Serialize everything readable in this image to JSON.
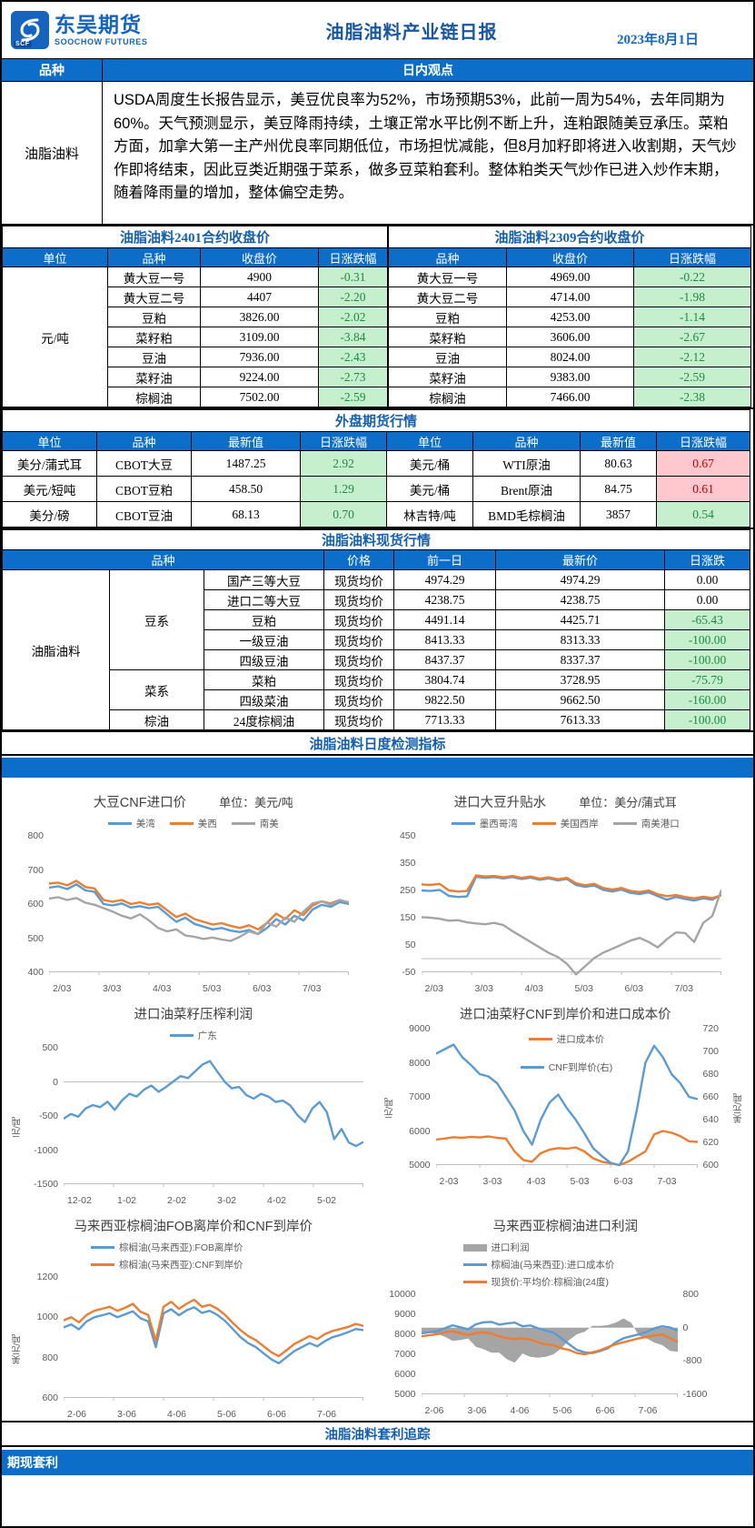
{
  "colors": {
    "accent_blue": "#0c6ec8",
    "title_blue": "#1460ae",
    "green_bg": "#c6efce",
    "green_text": "#1f8b3f",
    "red_bg": "#ffc7ce",
    "red_text": "#c00000",
    "line_blue": "#5B9BD5",
    "line_orange": "#ED7D31",
    "line_gray": "#A5A5A5"
  },
  "header": {
    "logo_cn": "东吴期货",
    "logo_en": "SOOCHOW FUTURES",
    "logo_badge": "SCF",
    "title": "油脂油料产业链日报",
    "date": "2023年8月1日"
  },
  "observation": {
    "col_variety": "品种",
    "col_view": "日内观点",
    "variety": "油脂油料",
    "text": "USDA周度生长报告显示，美豆优良率为52%，市场预期53%，此前一周为54%，去年同期为60%。天气预测显示，美豆降雨持续，土壤正常水平比例不断上升，连粕跟随美豆承压。菜粕方面，加拿大第一主产州优良率同期低位，市场担忧减能，但8月加籽即将进入收割期，天气炒作即将结束，因此豆类近期强于菜系，做多豆菜粕套利。整体粕类天气炒作已进入炒作末期，随着降雨量的增加，整体偏空走势。"
  },
  "contracts": {
    "left": {
      "title": "油脂油料2401合约收盘价",
      "headers": [
        "单位",
        "品种",
        "收盘价",
        "日涨跌幅"
      ],
      "unit": "元/吨",
      "rows": [
        [
          "黄大豆一号",
          "4900",
          "-0.31"
        ],
        [
          "黄大豆二号",
          "4407",
          "-2.20"
        ],
        [
          "豆粕",
          "3826.00",
          "-2.02"
        ],
        [
          "菜籽粕",
          "3109.00",
          "-3.84"
        ],
        [
          "豆油",
          "7936.00",
          "-2.43"
        ],
        [
          "菜籽油",
          "9224.00",
          "-2.73"
        ],
        [
          "棕榈油",
          "7502.00",
          "-2.59"
        ]
      ]
    },
    "right": {
      "title": "油脂油料2309合约收盘价",
      "headers": [
        "品种",
        "收盘价",
        "日涨跌幅"
      ],
      "rows": [
        [
          "黄大豆一号",
          "4969.00",
          "-0.22"
        ],
        [
          "黄大豆二号",
          "4714.00",
          "-1.98"
        ],
        [
          "豆粕",
          "4253.00",
          "-1.14"
        ],
        [
          "菜籽粕",
          "3606.00",
          "-2.67"
        ],
        [
          "豆油",
          "8024.00",
          "-2.12"
        ],
        [
          "菜籽油",
          "9383.00",
          "-2.59"
        ],
        [
          "棕榈油",
          "7466.00",
          "-2.38"
        ]
      ]
    }
  },
  "external": {
    "title": "外盘期货行情",
    "headers": [
      "单位",
      "品种",
      "最新值",
      "日涨跌幅",
      "单位",
      "品种",
      "最新值",
      "日涨跌幅"
    ],
    "rows": [
      {
        "cells": [
          "美分/蒲式耳",
          "CBOT大豆",
          "1487.25",
          "2.92",
          "美元/桶",
          "WTI原油",
          "80.63",
          "0.67"
        ],
        "tones": {
          "3": "green",
          "7": "red"
        }
      },
      {
        "cells": [
          "美元/短吨",
          "CBOT豆粕",
          "458.50",
          "1.29",
          "美元/桶",
          "Brent原油",
          "84.75",
          "0.61"
        ],
        "tones": {
          "3": "green",
          "7": "red"
        }
      },
      {
        "cells": [
          "美分/磅",
          "CBOT豆油",
          "68.13",
          "0.70",
          "林吉特/吨",
          "BMD毛棕榈油",
          "3857",
          "0.54"
        ],
        "tones": {
          "3": "green",
          "7": "green"
        }
      }
    ]
  },
  "spot": {
    "title": "油脂油料现货行情",
    "headers": [
      "品种",
      "价格",
      "前一日",
      "最新价",
      "日涨跌"
    ],
    "group": "油脂油料",
    "sections": [
      {
        "name": "豆系",
        "rows": [
          [
            "国产三等大豆",
            "现货均价",
            "4974.29",
            "4974.29",
            "0.00"
          ],
          [
            "进口二等大豆",
            "现货均价",
            "4238.75",
            "4238.75",
            "0.00"
          ],
          [
            "豆粕",
            "现货均价",
            "4491.14",
            "4425.71",
            "-65.43"
          ],
          [
            "一级豆油",
            "现货均价",
            "8413.33",
            "8313.33",
            "-100.00"
          ],
          [
            "四级豆油",
            "现货均价",
            "8437.37",
            "8337.37",
            "-100.00"
          ]
        ]
      },
      {
        "name": "菜系",
        "rows": [
          [
            "菜粕",
            "现货均价",
            "3804.74",
            "3728.95",
            "-75.79"
          ],
          [
            "四级菜油",
            "现货均价",
            "9822.50",
            "9662.50",
            "-160.00"
          ]
        ]
      },
      {
        "name": "棕油",
        "rows": [
          [
            "24度棕榈油",
            "现货均价",
            "7713.33",
            "7613.33",
            "-100.00"
          ]
        ]
      }
    ]
  },
  "indicators_title": "油脂油料日度检测指标",
  "footer": {
    "arb_title": "油脂油料套利追踪",
    "band": "期现套利"
  },
  "chart_data": [
    {
      "id": "soybean-cnf-import-price",
      "type": "line",
      "title": "大豆CNF进口价",
      "unit_label": "单位：美元/吨",
      "legend_layout": "row",
      "grid": false,
      "legend_position": "top",
      "x_ticks": [
        "2/03",
        "3/03",
        "4/03",
        "5/03",
        "6/03",
        "7/03"
      ],
      "ylim": [
        400,
        800
      ],
      "yticks": [
        800,
        700,
        600,
        500,
        400
      ],
      "series": [
        {
          "name": "美湾",
          "color": "#5B9BD5",
          "values": [
            648,
            652,
            644,
            658,
            640,
            636,
            600,
            596,
            602,
            590,
            594,
            588,
            592,
            570,
            548,
            560,
            542,
            534,
            526,
            530,
            522,
            518,
            524,
            512,
            530,
            556,
            540,
            566,
            552,
            584,
            598,
            592,
            606,
            600
          ]
        },
        {
          "name": "美西",
          "color": "#ED7D31",
          "values": [
            660,
            663,
            655,
            668,
            650,
            646,
            612,
            607,
            612,
            600,
            605,
            598,
            602,
            582,
            562,
            572,
            556,
            548,
            540,
            544,
            536,
            530,
            538,
            526,
            545,
            572,
            556,
            582,
            568,
            596,
            608,
            602,
            612,
            605
          ]
        },
        {
          "name": "南美",
          "color": "#A5A5A5",
          "values": [
            616,
            620,
            612,
            618,
            604,
            598,
            588,
            578,
            566,
            558,
            570,
            552,
            530,
            520,
            526,
            508,
            504,
            498,
            502,
            496,
            492,
            504,
            520,
            512,
            546,
            534,
            560,
            548,
            578,
            602,
            608,
            598,
            612,
            604
          ]
        }
      ]
    },
    {
      "id": "imported-soybean-basis",
      "type": "line",
      "title": "进口大豆升贴水",
      "unit_label": "单位：美分/蒲式耳",
      "legend_layout": "row",
      "grid": false,
      "legend_position": "top",
      "x_ticks": [
        "2/03",
        "3/03",
        "4/03",
        "5/03",
        "6/03",
        "7/03"
      ],
      "ylim": [
        -50,
        450
      ],
      "yticks": [
        450,
        350,
        250,
        150,
        50,
        -50
      ],
      "series": [
        {
          "name": "墨西哥湾",
          "color": "#5B9BD5",
          "values": [
            250,
            248,
            252,
            230,
            226,
            228,
            300,
            296,
            299,
            294,
            299,
            292,
            297,
            289,
            294,
            287,
            292,
            270,
            263,
            268,
            252,
            246,
            253,
            241,
            237,
            243,
            229,
            216,
            226,
            219,
            213,
            221,
            216,
            235
          ]
        },
        {
          "name": "美国西岸",
          "color": "#ED7D31",
          "values": [
            272,
            270,
            274,
            250,
            246,
            248,
            305,
            301,
            303,
            298,
            303,
            296,
            301,
            293,
            298,
            291,
            296,
            276,
            269,
            274,
            259,
            253,
            259,
            248,
            244,
            250,
            236,
            229,
            233,
            226,
            221,
            227,
            222,
            232
          ]
        },
        {
          "name": "南美港口",
          "color": "#A5A5A5",
          "values": [
            152,
            150,
            146,
            139,
            141,
            133,
            129,
            126,
            131,
            123,
            101,
            81,
            61,
            41,
            21,
            6,
            -19,
            -58,
            -28,
            2,
            22,
            36,
            51,
            66,
            76,
            61,
            41,
            71,
            96,
            94,
            61,
            131,
            156,
            252
          ]
        }
      ]
    },
    {
      "id": "imported-rapeseed-crush-margin",
      "type": "line",
      "title": "进口油菜籽压榨利润",
      "legend_layout": "row",
      "grid": false,
      "legend_position": "top",
      "ylabel_left": "元/吨",
      "x_ticks": [
        "12-02",
        "1-02",
        "2-02",
        "3-02",
        "4-02",
        "5-02"
      ],
      "ylim": [
        -1500,
        500
      ],
      "yticks": [
        500,
        0,
        -500,
        -1000,
        -1500
      ],
      "series": [
        {
          "name": "广东",
          "color": "#5B9BD5",
          "values": [
            -540,
            -470,
            -510,
            -390,
            -340,
            -370,
            -290,
            -410,
            -270,
            -175,
            -215,
            -115,
            -55,
            -145,
            -75,
            5,
            85,
            55,
            155,
            255,
            305,
            155,
            5,
            -95,
            -75,
            -195,
            -245,
            -175,
            -215,
            -295,
            -275,
            -345,
            -490,
            -590,
            -390,
            -295,
            -445,
            -840,
            -690,
            -890,
            -940,
            -880
          ]
        }
      ]
    },
    {
      "id": "rapeseed-cnf-and-import-cost",
      "type": "line",
      "title": "进口油菜籽CNF到岸价和进口成本价",
      "legend_layout": "row",
      "legend_overlay": true,
      "grid": false,
      "legend_position": "inside-top",
      "ylabel_left": "元/吨",
      "ylabel_right": "美元/吨",
      "x_ticks": [
        "2-03",
        "3-03",
        "4-03",
        "5-03",
        "6-03",
        "7-03"
      ],
      "ylim": [
        5000,
        9000
      ],
      "yticks": [
        9000,
        8000,
        7000,
        6000,
        5000
      ],
      "ylim_right": [
        600,
        720
      ],
      "yticks_right": [
        720,
        700,
        680,
        660,
        640,
        620,
        600
      ],
      "series": [
        {
          "name": "进口成本价",
          "color": "#ED7D31",
          "values": [
            5750,
            5780,
            5820,
            5800,
            5830,
            5810,
            5840,
            5800,
            5780,
            5400,
            5150,
            5100,
            5350,
            5450,
            5500,
            5480,
            5520,
            5400,
            5200,
            5100,
            5050,
            5000,
            5100,
            5250,
            5400,
            5900,
            6000,
            5950,
            5850,
            5700,
            5680
          ]
        },
        {
          "name": "CNF到岸价(右)",
          "color": "#5B9BD5",
          "axis": "right",
          "values": [
            698,
            702,
            706,
            695,
            688,
            680,
            678,
            672,
            660,
            648,
            630,
            618,
            640,
            655,
            662,
            650,
            640,
            628,
            615,
            608,
            602,
            600,
            612,
            648,
            690,
            705,
            695,
            680,
            672,
            660,
            658
          ]
        }
      ]
    },
    {
      "id": "malaysia-palm-fob-cnf",
      "type": "line",
      "title": "马来西亚棕榈油FOB离岸价和CNF到岸价",
      "legend_layout": "column",
      "grid": false,
      "legend_position": "top",
      "ylabel_left": "美元/吨",
      "x_ticks": [
        "2-06",
        "3-06",
        "4-06",
        "5-06",
        "6-06",
        "7-06"
      ],
      "ylim": [
        600,
        1200
      ],
      "yticks": [
        1200,
        1000,
        800,
        600
      ],
      "series": [
        {
          "name": "棕榈油(马来西亚):FOB离岸价",
          "color": "#5B9BD5",
          "values": [
            950,
            965,
            940,
            980,
            1000,
            1010,
            1020,
            1000,
            1015,
            1030,
            995,
            980,
            852,
            1020,
            1040,
            1010,
            1035,
            1050,
            1022,
            1032,
            1012,
            982,
            942,
            902,
            872,
            852,
            822,
            792,
            772,
            802,
            832,
            852,
            872,
            856,
            882,
            902,
            912,
            926,
            942,
            936
          ]
        },
        {
          "name": "棕榈油(马来西亚):CNF到岸价",
          "color": "#ED7D31",
          "values": [
            985,
            1000,
            975,
            1012,
            1032,
            1042,
            1052,
            1032,
            1047,
            1067,
            1027,
            1012,
            882,
            1052,
            1077,
            1042,
            1067,
            1087,
            1052,
            1062,
            1042,
            1012,
            972,
            937,
            907,
            887,
            857,
            827,
            807,
            837,
            867,
            887,
            907,
            892,
            917,
            932,
            942,
            952,
            967,
            957
          ]
        }
      ]
    },
    {
      "id": "malaysia-palm-import-profit",
      "type": "line",
      "title": "马来西亚棕榈油进口利润",
      "legend_layout": "column",
      "grid": false,
      "legend_position": "top",
      "x_ticks": [
        "2-06",
        "3-06",
        "4-06",
        "5-06",
        "6-06",
        "7-06"
      ],
      "ylim": [
        5000,
        10000
      ],
      "yticks": [
        10000,
        9000,
        8000,
        7000,
        6000,
        5000
      ],
      "ylim_right": [
        -1600,
        800
      ],
      "yticks_right": [
        800,
        0,
        -800,
        -1600
      ],
      "series": [
        {
          "name": "进口利润",
          "color": "#A5A5A5",
          "type": "area",
          "axis": "right",
          "values": [
            -120,
            -120,
            -150,
            -220,
            -320,
            -300,
            -260,
            -460,
            -520,
            -600,
            -600,
            -760,
            -840,
            -620,
            -700,
            -720,
            -700,
            -640,
            -500,
            -300,
            -160,
            -100,
            40,
            40,
            60,
            120,
            220,
            120,
            -200,
            -260,
            -360,
            -420,
            -560,
            -580
          ]
        },
        {
          "name": "棕榈油(马来西亚):进口成本价",
          "color": "#5B9BD5",
          "values": [
            8050,
            8100,
            8150,
            8300,
            8450,
            8350,
            8250,
            8500,
            8600,
            8620,
            8480,
            8540,
            8580,
            8400,
            8440,
            8300,
            8180,
            8080,
            7800,
            7500,
            7220,
            7100,
            7060,
            7160,
            7300,
            7600,
            7800,
            7900,
            8000,
            8120,
            8300,
            8400,
            8340,
            8180
          ]
        },
        {
          "name": "现货价:平均价:棕榈油(24度)",
          "color": "#ED7D31",
          "values": [
            7900,
            7950,
            8000,
            8100,
            8150,
            8060,
            7960,
            8060,
            8100,
            8040,
            7900,
            7800,
            7760,
            7800,
            7740,
            7600,
            7500,
            7460,
            7300,
            7220,
            7060,
            7000,
            7100,
            7200,
            7360,
            7500,
            7600,
            7700,
            7800,
            7860,
            7940,
            8000,
            7800,
            7620
          ]
        }
      ]
    }
  ]
}
